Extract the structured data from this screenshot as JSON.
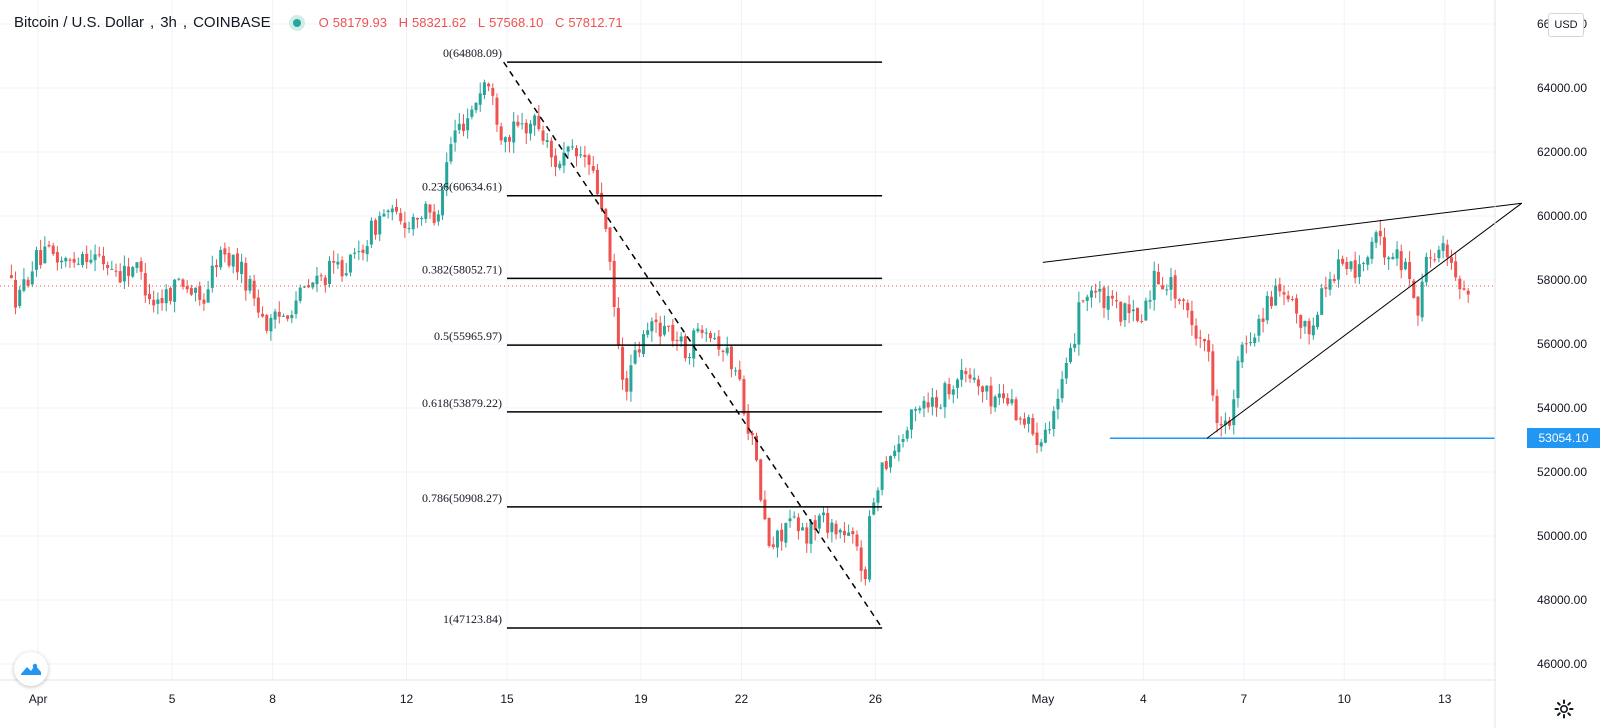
{
  "header": {
    "symbol": "Bitcoin / U.S. Dollar",
    "interval": "3h",
    "exchange": "COINBASE",
    "open_label": "O",
    "open": "58179.93",
    "high_label": "H",
    "high": "58321.62",
    "low_label": "L",
    "low": "57568.10",
    "close_label": "C",
    "close": "57812.71"
  },
  "currency_button": "USD",
  "hline_price_label": "53054.10",
  "colors": {
    "up": "#26a69a",
    "down": "#ef5350",
    "fib_line": "#000000",
    "hline": "#2196f3",
    "grid": "#f0f3fa",
    "axis_text": "#131722"
  },
  "icons": {
    "logo": "tradingview-logo-icon",
    "settings": "gear-icon"
  },
  "chart_data": {
    "type": "candlestick",
    "title": "Bitcoin / U.S. Dollar, 3h, COINBASE",
    "y_axis": {
      "range": [
        45500,
        66500
      ],
      "ticks": [
        "46000.00",
        "48000.00",
        "50000.00",
        "52000.00",
        "54000.00",
        "56000.00",
        "58000.00",
        "60000.00",
        "62000.00",
        "64000.00",
        "66000.00"
      ],
      "position": "right"
    },
    "x_axis": {
      "ticks": [
        {
          "label": "Apr",
          "day": 1
        },
        {
          "label": "5",
          "day": 5
        },
        {
          "label": "8",
          "day": 8
        },
        {
          "label": "12",
          "day": 12
        },
        {
          "label": "15",
          "day": 15
        },
        {
          "label": "19",
          "day": 19
        },
        {
          "label": "22",
          "day": 22
        },
        {
          "label": "26",
          "day": 26
        },
        {
          "label": "May",
          "day": 31
        },
        {
          "label": "4",
          "day": 34
        },
        {
          "label": "7",
          "day": 37
        },
        {
          "label": "10",
          "day": 40
        },
        {
          "label": "13",
          "day": 43
        }
      ],
      "range_days": [
        0.1,
        44.5
      ]
    },
    "price_path": [
      [
        0.2,
        58200
      ],
      [
        0.5,
        57300
      ],
      [
        1.0,
        58600
      ],
      [
        1.5,
        58800
      ],
      [
        2.0,
        58500
      ],
      [
        2.5,
        58900
      ],
      [
        3.0,
        58600
      ],
      [
        3.6,
        58200
      ],
      [
        4.0,
        58500
      ],
      [
        4.6,
        57300
      ],
      [
        5.0,
        57600
      ],
      [
        5.4,
        58100
      ],
      [
        6.0,
        57200
      ],
      [
        6.5,
        58800
      ],
      [
        7.0,
        58600
      ],
      [
        7.5,
        57700
      ],
      [
        8.0,
        56500
      ],
      [
        8.5,
        57000
      ],
      [
        9.0,
        57600
      ],
      [
        9.5,
        58000
      ],
      [
        10.0,
        58400
      ],
      [
        10.5,
        58500
      ],
      [
        11.0,
        59400
      ],
      [
        11.5,
        60200
      ],
      [
        12.0,
        59700
      ],
      [
        12.5,
        60100
      ],
      [
        13.0,
        60000
      ],
      [
        13.5,
        62500
      ],
      [
        14.0,
        63200
      ],
      [
        14.5,
        64300
      ],
      [
        15.0,
        62500
      ],
      [
        15.5,
        62700
      ],
      [
        16.0,
        63000
      ],
      [
        16.5,
        61700
      ],
      [
        17.0,
        61900
      ],
      [
        17.5,
        61800
      ],
      [
        18.0,
        60200
      ],
      [
        18.3,
        57300
      ],
      [
        18.6,
        54500
      ],
      [
        19.0,
        55700
      ],
      [
        19.5,
        56700
      ],
      [
        20.0,
        56400
      ],
      [
        20.5,
        55700
      ],
      [
        21.0,
        56800
      ],
      [
        21.5,
        56000
      ],
      [
        22.0,
        55100
      ],
      [
        22.5,
        52700
      ],
      [
        22.8,
        50500
      ],
      [
        23.0,
        49500
      ],
      [
        23.5,
        50500
      ],
      [
        24.0,
        50000
      ],
      [
        24.5,
        50600
      ],
      [
        25.0,
        50200
      ],
      [
        25.5,
        49800
      ],
      [
        25.8,
        48700
      ],
      [
        26.0,
        50800
      ],
      [
        26.3,
        52200
      ],
      [
        27.0,
        53200
      ],
      [
        27.5,
        54300
      ],
      [
        28.0,
        54200
      ],
      [
        28.5,
        55000
      ],
      [
        29.0,
        55000
      ],
      [
        29.5,
        54300
      ],
      [
        30.0,
        54400
      ],
      [
        30.5,
        53700
      ],
      [
        31.0,
        53100
      ],
      [
        31.5,
        54000
      ],
      [
        32.0,
        55700
      ],
      [
        32.2,
        57400
      ],
      [
        32.6,
        57700
      ],
      [
        33.0,
        57200
      ],
      [
        33.5,
        57000
      ],
      [
        34.0,
        56700
      ],
      [
        34.5,
        58200
      ],
      [
        35.0,
        57800
      ],
      [
        35.5,
        56700
      ],
      [
        36.0,
        56100
      ],
      [
        36.3,
        53900
      ],
      [
        36.7,
        53300
      ],
      [
        37.0,
        55600
      ],
      [
        37.5,
        56600
      ],
      [
        38.0,
        57600
      ],
      [
        38.5,
        57200
      ],
      [
        39.0,
        56300
      ],
      [
        39.5,
        57700
      ],
      [
        40.0,
        58600
      ],
      [
        40.5,
        58200
      ],
      [
        41.0,
        59200
      ],
      [
        41.5,
        58900
      ],
      [
        42.0,
        58400
      ],
      [
        42.3,
        57100
      ],
      [
        42.6,
        58600
      ],
      [
        43.0,
        59100
      ],
      [
        43.4,
        58200
      ],
      [
        43.7,
        57800
      ]
    ],
    "fibonacci_retracement": [
      {
        "label": "0(64808.09)",
        "level": 0,
        "price": 64808.09
      },
      {
        "label": "0.236(60634.61)",
        "level": 0.236,
        "price": 60634.61
      },
      {
        "label": "0.382(58052.71)",
        "level": 0.382,
        "price": 58052.71
      },
      {
        "label": "0.5(55965.97)",
        "level": 0.5,
        "price": 55965.97
      },
      {
        "label": "0.618(53879.22)",
        "level": 0.618,
        "price": 53879.22
      },
      {
        "label": "0.786(50908.27)",
        "level": 0.786,
        "price": 50908.27
      },
      {
        "label": "1(47123.84)",
        "level": 1,
        "price": 47123.84
      }
    ],
    "fib_day_range": [
      15.0,
      26.2
    ],
    "fib_trend_line": {
      "from": [
        14.9,
        64808
      ],
      "to": [
        26.2,
        47124
      ]
    },
    "horizontal_line": {
      "price": 53054.1,
      "from_day": 33.0
    },
    "wedge_upper": {
      "from": [
        31.0,
        58550
      ],
      "to": [
        45.3,
        60400
      ]
    },
    "wedge_lower": {
      "from": [
        35.9,
        53054
      ],
      "to": [
        45.3,
        60400
      ]
    },
    "current_price": 57812.71
  }
}
